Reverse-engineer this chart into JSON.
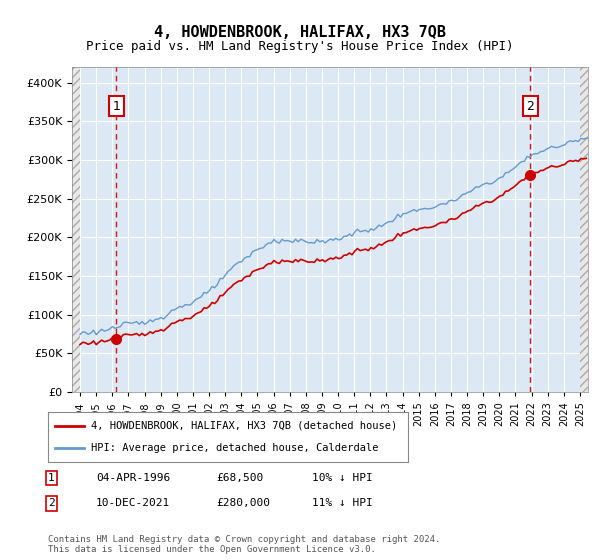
{
  "title": "4, HOWDENBROOK, HALIFAX, HX3 7QB",
  "subtitle": "Price paid vs. HM Land Registry's House Price Index (HPI)",
  "hpi_label": "HPI: Average price, detached house, Calderdale",
  "price_label": "4, HOWDENBROOK, HALIFAX, HX3 7QB (detached house)",
  "sale1_date": "04-APR-1996",
  "sale1_price": 68500,
  "sale1_note": "10% ↓ HPI",
  "sale2_date": "10-DEC-2021",
  "sale2_price": 280000,
  "sale2_note": "11% ↓ HPI",
  "footer": "Contains HM Land Registry data © Crown copyright and database right 2024.\nThis data is licensed under the Open Government Licence v3.0.",
  "xmin": 1993.5,
  "xmax": 2025.5,
  "ymin": 0,
  "ymax": 420000,
  "background_color": "#dce9f5",
  "hatch_color": "#c0c0c0",
  "grid_color": "#ffffff",
  "price_line_color": "#cc0000",
  "hpi_line_color": "#6699cc",
  "sale_marker_color": "#cc0000",
  "vline_color": "#cc0000",
  "box_color": "#cc0000"
}
